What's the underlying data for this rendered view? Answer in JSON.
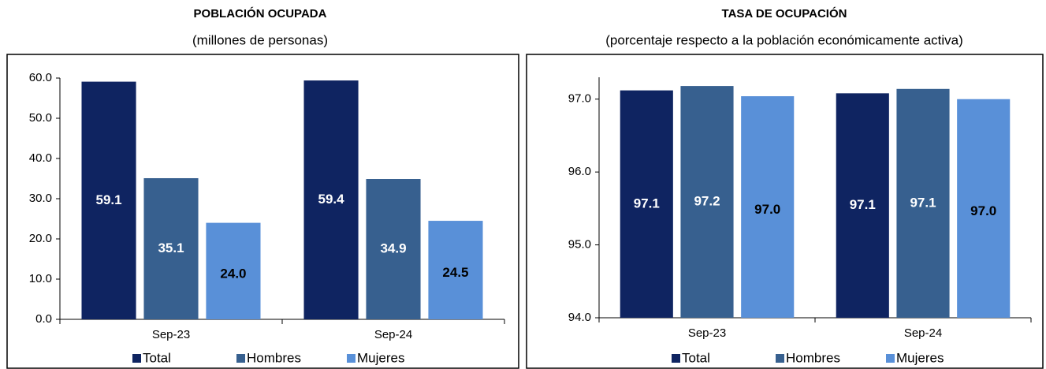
{
  "chart_data": [
    {
      "type": "bar",
      "title": "POBLACIÓN OCUPADA",
      "subtitle": "(millones de personas)",
      "categories": [
        "Sep-23",
        "Sep-24"
      ],
      "series": [
        {
          "name": "Total",
          "color": "#0f2461",
          "label_color": "#ffffff",
          "values": [
            59.1,
            59.4
          ],
          "value_labels": [
            "59.1",
            "59.4"
          ]
        },
        {
          "name": "Hombres",
          "color": "#37608f",
          "label_color": "#ffffff",
          "values": [
            35.1,
            34.9
          ],
          "value_labels": [
            "35.1",
            "34.9"
          ]
        },
        {
          "name": "Mujeres",
          "color": "#5990d8",
          "label_color": "#000000",
          "values": [
            24.0,
            24.5
          ],
          "value_labels": [
            "24.0",
            "24.5"
          ]
        }
      ],
      "ylim": [
        0,
        60
      ],
      "yticks": [
        {
          "value": 0,
          "label": "0.0"
        },
        {
          "value": 10,
          "label": "10.0"
        },
        {
          "value": 20,
          "label": "20.0"
        },
        {
          "value": 30,
          "label": "30.0"
        },
        {
          "value": 40,
          "label": "40.0"
        },
        {
          "value": 50,
          "label": "50.0"
        },
        {
          "value": 60,
          "label": "60.0"
        }
      ],
      "grid": false,
      "legend": "bottom"
    },
    {
      "type": "bar",
      "title": "TASA DE OCUPACIÓN",
      "subtitle": "(porcentaje respecto a la población económicamente activa)",
      "categories": [
        "Sep-23",
        "Sep-24"
      ],
      "series": [
        {
          "name": "Total",
          "color": "#0f2461",
          "label_color": "#ffffff",
          "values": [
            97.12,
            97.08
          ],
          "value_labels": [
            "97.1",
            "97.1"
          ]
        },
        {
          "name": "Hombres",
          "color": "#37608f",
          "label_color": "#ffffff",
          "values": [
            97.18,
            97.14
          ],
          "value_labels": [
            "97.2",
            "97.1"
          ]
        },
        {
          "name": "Mujeres",
          "color": "#5990d8",
          "label_color": "#000000",
          "values": [
            97.04,
            97.0
          ],
          "value_labels": [
            "97.0",
            "97.0"
          ]
        }
      ],
      "ylim": [
        94,
        97.3
      ],
      "yticks": [
        {
          "value": 94,
          "label": "94.0"
        },
        {
          "value": 95,
          "label": "95.0"
        },
        {
          "value": 96,
          "label": "96.0"
        },
        {
          "value": 97,
          "label": "97.0"
        }
      ],
      "grid": false,
      "legend": "bottom"
    }
  ]
}
